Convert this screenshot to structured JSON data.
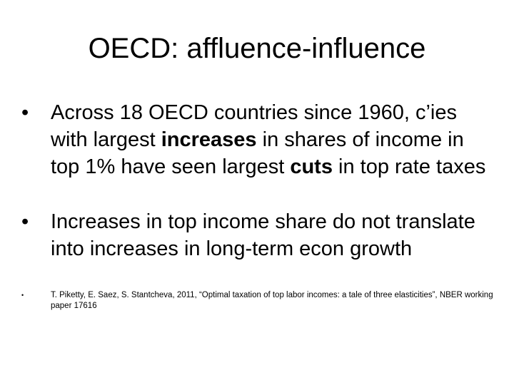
{
  "slide": {
    "title": "OECD: affluence-influence",
    "bullets": [
      {
        "marker": "•",
        "text_1": "Across 18 OECD countries since 1960, c’ies with largest ",
        "bold_1": "increases",
        "text_2": " in shares of income in top 1% have seen largest ",
        "bold_2": "cuts",
        "text_3": " in top rate taxes"
      },
      {
        "marker": "•",
        "text": "Increases in top income share do not translate into increases in long-term econ growth"
      },
      {
        "marker": "•",
        "text": "T. Piketty, E. Saez, S. Stantcheva, 2011, “Optimal taxation of top labor incomes: a tale of three elasticities”, NBER working paper 17616"
      }
    ]
  }
}
